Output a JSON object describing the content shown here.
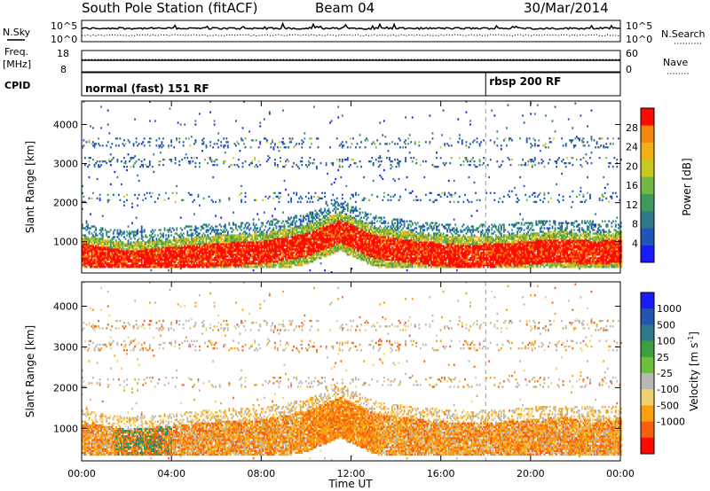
{
  "header": {
    "station": "South Pole Station (fitACF)",
    "beam": "Beam 04",
    "date": "30/Mar/2014"
  },
  "panels": {
    "nsky_label": "N.Sky",
    "nsearch_label": "N.Search",
    "nsky_ticks": [
      "10^5",
      "10^0"
    ],
    "freq_label": "Freq.",
    "freq_unit": "[MHz]",
    "freq_ticks": [
      "18",
      "8"
    ],
    "nave_label": "Nave",
    "nave_ticks": [
      "60",
      "0"
    ],
    "cpid_label": "CPID",
    "cpid_modes": [
      "normal (fast) 151 RF",
      "rbsp 200 RF"
    ],
    "cpid_mode_start_hours": [
      0,
      18
    ]
  },
  "chart_data": [
    {
      "type": "heatmap",
      "title": "Power",
      "ylabel": "Slant Range [km]",
      "xlabel": "Time UT",
      "xlim": [
        0,
        24
      ],
      "ylim": [
        200,
        4600
      ],
      "x_ticks": [
        "00:00",
        "04:00",
        "08:00",
        "12:00",
        "16:00",
        "20:00",
        "00:00"
      ],
      "y_ticks": [
        1000,
        2000,
        3000,
        4000
      ],
      "colorbar": {
        "label": "Power [dB]",
        "ticks": [
          4,
          8,
          12,
          16,
          20,
          24,
          28
        ],
        "range": [
          0,
          32
        ],
        "colors": [
          "#1a1aff",
          "#1f55b8",
          "#2e7a8a",
          "#3e9a5a",
          "#72b844",
          "#c8c820",
          "#f2b010",
          "#f5860c",
          "#ff0a00"
        ]
      },
      "features": {
        "main_band_center_km": [
          [
            0,
            800
          ],
          [
            2,
            600
          ],
          [
            4,
            700
          ],
          [
            6,
            800
          ],
          [
            8,
            850
          ],
          [
            10,
            1050
          ],
          [
            11.5,
            1400
          ],
          [
            13,
            1000
          ],
          [
            15,
            850
          ],
          [
            17,
            750
          ],
          [
            19,
            800
          ],
          [
            21,
            900
          ],
          [
            23,
            850
          ],
          [
            24,
            900
          ]
        ],
        "upper_scatter_km": [
          2100,
          3000,
          3500
        ],
        "mode_change_hour": 18
      }
    },
    {
      "type": "heatmap",
      "title": "Velocity",
      "ylabel": "Slant Range [km]",
      "xlabel": "Time UT",
      "xlim": [
        0,
        24
      ],
      "ylim": [
        200,
        4600
      ],
      "x_ticks": [
        "00:00",
        "04:00",
        "08:00",
        "12:00",
        "16:00",
        "20:00",
        "00:00"
      ],
      "y_ticks": [
        1000,
        2000,
        3000,
        4000
      ],
      "colorbar": {
        "label": "Velocity [m s^-1]",
        "ticks": [
          "1000",
          "500",
          "100",
          "25",
          "-25",
          "-100",
          "-500",
          "-1000"
        ],
        "colors": [
          "#1a1aff",
          "#2255b0",
          "#2e7a8a",
          "#3aa040",
          "#6cc040",
          "#b8b8b8",
          "#f0d070",
          "#f8a010",
          "#f86010",
          "#ff0a00"
        ]
      }
    }
  ],
  "colors": {
    "mode_line": "#999999",
    "ground_scatter": "#bbbbbb"
  }
}
